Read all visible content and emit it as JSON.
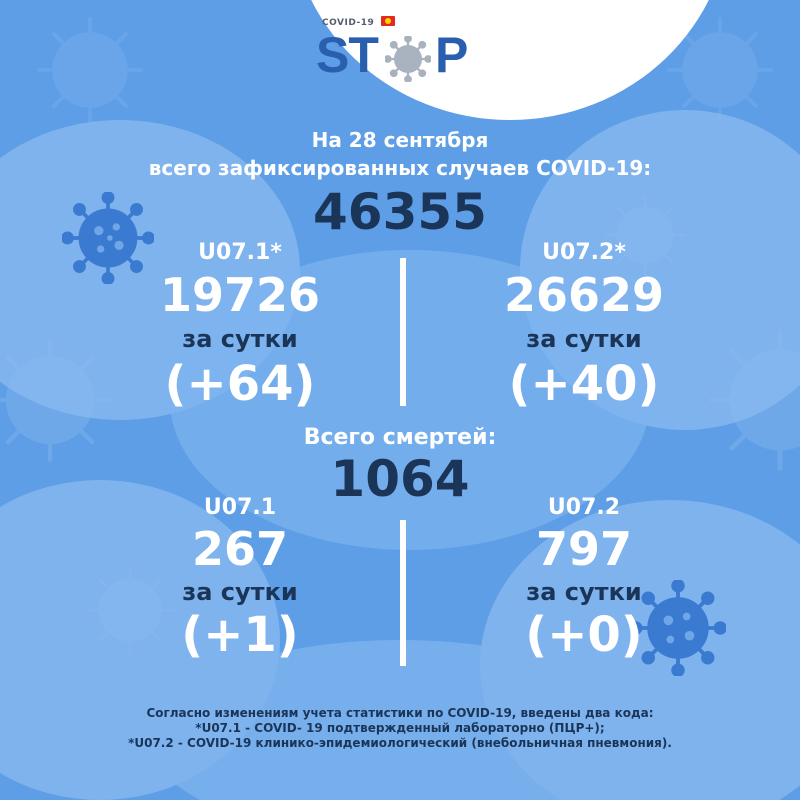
{
  "logo": {
    "small_text": "COVID-19",
    "word_left": "ST",
    "word_right": "P",
    "o_icon": "virus-icon"
  },
  "header": {
    "date_line": "На 28 сентября",
    "subtitle": "всего зафиксированных случаев COVID-19:",
    "total_cases": "46355"
  },
  "cases": {
    "left": {
      "code": "U07.1*",
      "value": "19726",
      "per_day_label": "за сутки",
      "delta": "(+64)"
    },
    "right": {
      "code": "U07.2*",
      "value": "26629",
      "per_day_label": "за сутки",
      "delta": "(+40)"
    }
  },
  "deaths": {
    "label": "Всего смертей:",
    "total": "1064",
    "left": {
      "code": "U07.1",
      "value": "267",
      "per_day_label": "за сутки",
      "delta": "(+1)"
    },
    "right": {
      "code": "U07.2",
      "value": "797",
      "per_day_label": "за сутки",
      "delta": "(+0)"
    }
  },
  "footnote": {
    "line1": "Согласно изменениям учета статистики по COVID-19, введены два кода:",
    "line2": "*U07.1 - COVID- 19 подтвержденный лабораторно (ПЦР+);",
    "line3": "*U07.2 - COVID-19 клинико-эпидемиологический (внебольничная пневмония)."
  },
  "colors": {
    "background": "#5d9ee6",
    "accent_dark": "#1b3558",
    "logo_blue": "#2a5fb0",
    "virus_dark": "#3a7ad0",
    "flag_red": "#e12b1f"
  }
}
